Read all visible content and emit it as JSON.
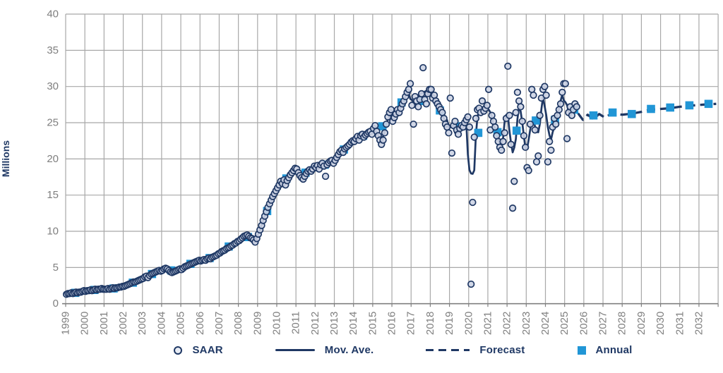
{
  "colors": {
    "navy": "#1F3864",
    "light_blue": "#2196D6",
    "scatter_fill": "#CDD4E4",
    "grid": "#A8A8A8",
    "axis_line": "#808080",
    "tick_text": "#7F7F7F"
  },
  "legend": {
    "items": [
      {
        "label": "SAAR",
        "marker": "circle"
      },
      {
        "label": "Mov. Ave.",
        "marker": "line"
      },
      {
        "label": "Forecast",
        "marker": "dash"
      },
      {
        "label": "Annual",
        "marker": "square"
      }
    ]
  },
  "chart_data": {
    "type": "scatter",
    "title": "",
    "xlabel": "",
    "ylabel": "Millions",
    "ylim": [
      0,
      40
    ],
    "yticks": [
      0,
      5,
      10,
      15,
      20,
      25,
      30,
      35,
      40
    ],
    "xticks": [
      1999,
      2000,
      2001,
      2002,
      2003,
      2004,
      2005,
      2006,
      2007,
      2008,
      2009,
      2010,
      2011,
      2012,
      2013,
      2014,
      2015,
      2016,
      2017,
      2018,
      2019,
      2020,
      2021,
      2022,
      2023,
      2024,
      2025,
      2026,
      2027,
      2028,
      2029,
      2030,
      2031,
      2032
    ],
    "grid": "both",
    "legend_position": "bottom",
    "series": [
      {
        "name": "SAAR",
        "type": "scatter",
        "unit": "millions of vehicles, seasonally adjusted annual rate",
        "monthly": {
          "1999": [
            1.3,
            1.4,
            1.4,
            1.5,
            1.4,
            1.5,
            1.6,
            1.5,
            1.6,
            1.6,
            1.7,
            1.8
          ],
          "2000": [
            1.7,
            1.8,
            1.8,
            1.9,
            1.8,
            1.9,
            2.0,
            1.9,
            2.0,
            2.0,
            2.1,
            2.0
          ],
          "2001": [
            2.0,
            2.0,
            2.1,
            2.0,
            2.1,
            2.2,
            2.1,
            2.2,
            2.2,
            2.3,
            2.3,
            2.4
          ],
          "2002": [
            2.4,
            2.5,
            2.6,
            2.7,
            2.8,
            2.9,
            3.0,
            3.0,
            3.1,
            3.2,
            3.3,
            3.4
          ],
          "2003": [
            3.5,
            3.7,
            3.8,
            3.6,
            3.9,
            4.1,
            4.2,
            4.3,
            4.4,
            4.5,
            4.6,
            4.5
          ],
          "2004": [
            4.6,
            4.8,
            4.9,
            4.8,
            4.6,
            4.4,
            4.3,
            4.4,
            4.5,
            4.6,
            4.7,
            4.8
          ],
          "2005": [
            4.7,
            4.9,
            5.1,
            5.2,
            5.3,
            5.4,
            5.5,
            5.6,
            5.7,
            5.8,
            5.9,
            6.0
          ],
          "2006": [
            5.9,
            6.0,
            6.1,
            6.0,
            6.2,
            6.3,
            6.2,
            6.4,
            6.5,
            6.6,
            6.7,
            6.9
          ],
          "2007": [
            7.0,
            7.2,
            7.3,
            7.4,
            7.6,
            7.7,
            7.8,
            8.0,
            8.1,
            8.3,
            8.4,
            8.6
          ],
          "2008": [
            8.7,
            8.9,
            9.1,
            9.3,
            9.4,
            9.5,
            9.3,
            9.1,
            9.0,
            8.8,
            8.5,
            9.0
          ],
          "2009": [
            9.6,
            10.2,
            10.8,
            11.5,
            12.1,
            12.7,
            13.3,
            13.8,
            14.3,
            14.8,
            15.2,
            15.6
          ],
          "2010": [
            16.0,
            16.4,
            16.9,
            16.6,
            17.1,
            16.4,
            17.0,
            17.4,
            17.8,
            18.1,
            18.4,
            18.7
          ],
          "2011": [
            18.6,
            18.1,
            17.7,
            17.4,
            17.2,
            17.6,
            18.0,
            18.3,
            18.5,
            18.3,
            18.6,
            19.0
          ],
          "2012": [
            18.8,
            19.1,
            18.6,
            19.2,
            19.4,
            19.0,
            17.6,
            19.2,
            19.5,
            19.7,
            19.8,
            19.4
          ],
          "2013": [
            19.8,
            20.2,
            20.6,
            21.0,
            21.2,
            20.9,
            21.4,
            21.6,
            21.8,
            22.0,
            22.3,
            22.5
          ],
          "2014": [
            22.4,
            22.8,
            23.1,
            22.6,
            23.2,
            23.4,
            23.0,
            23.3,
            23.5,
            23.7,
            23.8,
            23.4
          ],
          "2015": [
            24.2,
            24.6,
            23.8,
            23.2,
            22.6,
            22.0,
            22.6,
            23.6,
            24.8,
            25.8,
            26.4,
            26.8
          ],
          "2016": [
            25.2,
            25.7,
            26.2,
            26.8,
            26.4,
            27.0,
            27.6,
            28.0,
            28.6,
            29.2,
            29.6,
            30.4
          ],
          "2017": [
            27.4,
            24.8,
            28.6,
            28.0,
            27.2,
            28.2,
            29.0,
            32.6,
            28.2,
            27.6,
            29.0,
            29.6
          ],
          "2018": [
            29.6,
            28.4,
            28.8,
            28.0,
            27.6,
            27.2,
            26.8,
            26.4,
            25.6,
            24.8,
            24.4,
            23.6
          ],
          "2019": [
            28.4,
            20.8,
            24.6,
            25.2,
            24.0,
            23.4,
            24.2,
            24.6,
            24.4,
            25.0,
            25.4,
            25.8
          ],
          "2020": [
            24.4,
            2.7,
            14.0,
            23.0,
            25.6,
            26.8,
            27.0,
            26.4,
            28.0,
            26.6,
            27.0,
            27.4
          ],
          "2021": [
            29.6,
            24.0,
            26.0,
            25.2,
            24.4,
            23.2,
            22.4,
            21.6,
            21.2,
            22.4,
            23.6,
            25.6
          ],
          "2022": [
            32.8,
            26.0,
            22.0,
            13.2,
            16.9,
            26.4,
            29.2,
            28.0,
            27.2,
            25.2,
            23.2,
            21.6
          ],
          "2023": [
            18.8,
            18.4,
            24.8,
            29.6,
            28.8,
            24.0,
            19.6,
            20.4,
            26.0,
            28.4,
            29.6,
            30.0
          ],
          "2024": [
            28.8,
            19.6,
            22.4,
            21.2,
            24.4,
            25.6,
            24.8,
            26.0,
            26.8,
            27.6,
            29.2,
            30.4
          ],
          "2025": [
            30.4,
            22.8,
            26.4,
            27.2,
            26.0,
            26.8,
            27.6,
            27.2
          ]
        }
      },
      {
        "name": "Mov. Ave.",
        "type": "line",
        "derived": "5-month centered moving average of SAAR",
        "window": 5
      },
      {
        "name": "Forecast",
        "type": "dashed-line",
        "points": [
          [
            2025.7,
            26.3
          ],
          [
            2025.95,
            25.4
          ],
          [
            2026.2,
            26.1
          ],
          [
            2026.5,
            25.5
          ],
          [
            2026.8,
            26.2
          ],
          [
            2027.1,
            25.7
          ],
          [
            2027.5,
            26.35
          ],
          [
            2028.0,
            26.1
          ],
          [
            2028.5,
            26.25
          ],
          [
            2029.0,
            26.5
          ],
          [
            2029.5,
            26.8
          ],
          [
            2030.0,
            26.9
          ],
          [
            2030.5,
            27.0
          ],
          [
            2031.0,
            27.2
          ],
          [
            2031.5,
            27.35
          ],
          [
            2032.0,
            27.45
          ],
          [
            2032.5,
            27.55
          ],
          [
            2032.9,
            27.6
          ]
        ]
      },
      {
        "name": "Annual",
        "type": "square-markers",
        "years": [
          1999,
          2000,
          2001,
          2002,
          2003,
          2004,
          2005,
          2006,
          2007,
          2008,
          2009,
          2010,
          2011,
          2012,
          2013,
          2014,
          2015,
          2016,
          2017,
          2018,
          2019,
          2020,
          2021,
          2022,
          2023,
          2024,
          2025,
          2026,
          2027,
          2028,
          2029,
          2030,
          2031,
          2032
        ],
        "values": [
          1.5,
          1.9,
          2.1,
          2.9,
          4.1,
          4.6,
          5.5,
          6.3,
          7.9,
          9.2,
          12.8,
          17.3,
          18.1,
          19.2,
          21.3,
          23.2,
          24.5,
          27.8,
          28.0,
          26.7,
          24.5,
          23.6,
          23.7,
          23.9,
          25.3,
          25.4,
          26.8,
          26.0,
          26.4,
          26.2,
          26.9,
          27.1,
          27.4,
          27.6
        ]
      }
    ]
  }
}
